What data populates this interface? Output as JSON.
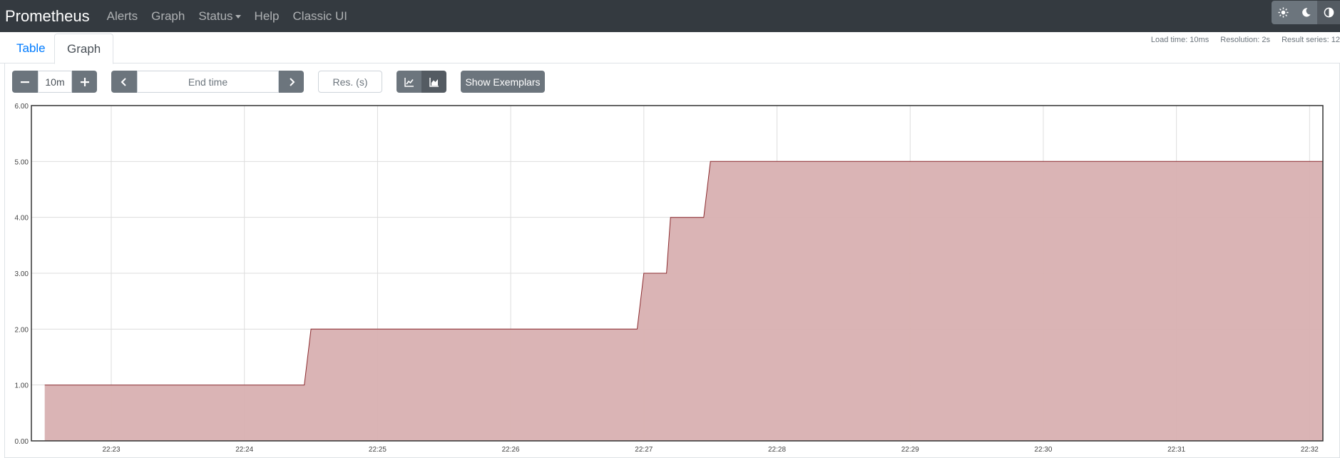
{
  "navbar": {
    "brand": "Prometheus",
    "links": [
      "Alerts",
      "Graph",
      "Status",
      "Help",
      "Classic UI"
    ],
    "theme_icons": [
      "sun-icon",
      "moon-icon",
      "contrast-icon"
    ]
  },
  "tabs": {
    "table": "Table",
    "graph": "Graph"
  },
  "stats": {
    "load_time": "Load time: 10ms",
    "resolution": "Resolution: 2s",
    "result_series": "Result series: 12"
  },
  "controls": {
    "range_value": "10m",
    "end_time_placeholder": "End time",
    "resolution_placeholder": "Res. (s)",
    "show_exemplars": "Show Exemplars"
  },
  "colors": {
    "series_fill": "#d8b0b1",
    "series_line": "#8b2a2e",
    "navbar": "#343a40"
  },
  "chart_data": {
    "type": "area",
    "stacked": true,
    "grid": true,
    "ylim": [
      0,
      6
    ],
    "y_ticks": [
      "0.00",
      "1.00",
      "2.00",
      "3.00",
      "4.00",
      "5.00",
      "6.00"
    ],
    "x_range_min": [
      22.4,
      32.1
    ],
    "x_tick_minutes": [
      23,
      24,
      25,
      26,
      27,
      28,
      29,
      30,
      31,
      32
    ],
    "x_tick_labels": [
      "22:23",
      "22:24",
      "22:25",
      "22:26",
      "22:27",
      "22:28",
      "22:29",
      "22:30",
      "22:31",
      "22:32"
    ],
    "series": [
      {
        "x_min": [
          22.5,
          23.0,
          23.5,
          24.0,
          24.45,
          24.5,
          25.0,
          25.5,
          26.0,
          26.5,
          26.95,
          27.0,
          27.17,
          27.2,
          27.45,
          27.5,
          28.0,
          28.5,
          29.0,
          29.5,
          30.0,
          30.5,
          31.0,
          31.5,
          32.0,
          32.1
        ],
        "y": [
          1,
          1,
          1,
          1,
          1,
          2,
          2,
          2,
          2,
          2,
          2,
          3,
          3,
          4,
          4,
          5,
          5,
          5,
          5,
          5,
          5,
          5,
          5,
          5,
          5,
          5
        ]
      }
    ]
  }
}
